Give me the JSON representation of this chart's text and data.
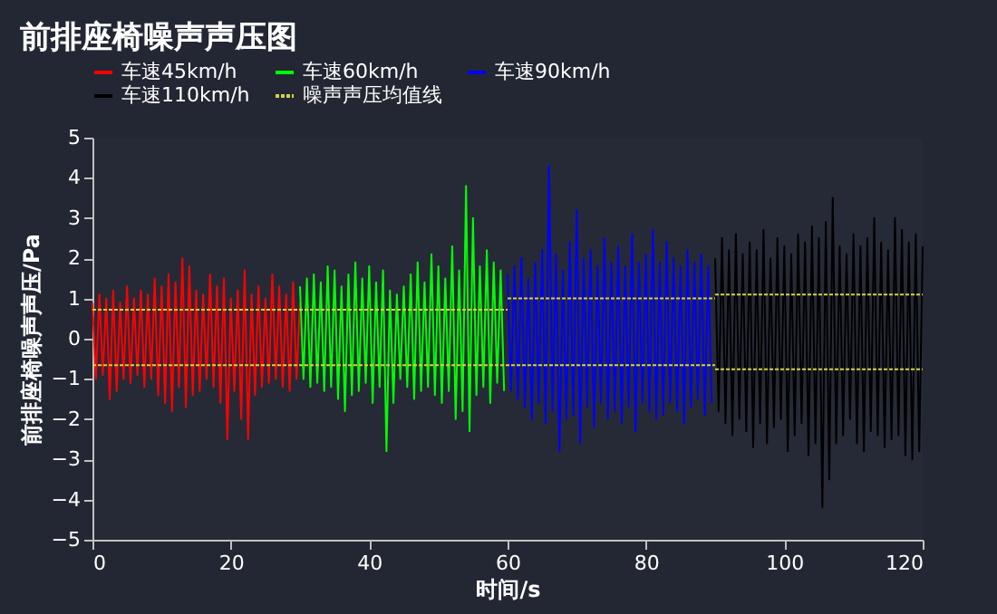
{
  "chart_data": {
    "type": "line",
    "title": "前排座椅噪声声压图",
    "xlabel": "时间/s",
    "ylabel": "前排座椅噪声声压/Pa",
    "xlim": [
      0,
      120
    ],
    "xticks": [
      0,
      20,
      40,
      60,
      80,
      100,
      120
    ],
    "ylim": [
      -5,
      5
    ],
    "yticks": [
      -5,
      -4,
      -3,
      -2,
      -1,
      0,
      1,
      2,
      3,
      4,
      5
    ],
    "grid": false,
    "legend": "top",
    "marker": "none",
    "line_style": "solid",
    "series": [
      {
        "name": "车速45km/h",
        "color": "#ff0000",
        "x": [
          0,
          0.5,
          1,
          1.5,
          2,
          2.5,
          3,
          3.5,
          4,
          4.5,
          5,
          5.5,
          6,
          6.5,
          7,
          7.5,
          8,
          8.5,
          9,
          9.5,
          10,
          10.5,
          11,
          11.5,
          12,
          12.5,
          13,
          13.5,
          14,
          14.5,
          15,
          15.5,
          16,
          16.5,
          17,
          17.5,
          18,
          18.5,
          19,
          19.5,
          20,
          20.5,
          21,
          21.5,
          22,
          22.5,
          23,
          23.5,
          24,
          24.5,
          25,
          25.5,
          26,
          26.5,
          27,
          27.5,
          28,
          28.5,
          29,
          29.5,
          30
        ],
        "values": [
          0.9,
          -1.0,
          1.1,
          -0.9,
          1.0,
          -1.5,
          1.2,
          -1.3,
          0.9,
          -1.0,
          1.3,
          -1.1,
          1.0,
          -0.9,
          1.2,
          -1.2,
          1.1,
          -1.0,
          1.5,
          -1.4,
          1.3,
          -1.6,
          1.6,
          -1.8,
          1.4,
          -1.2,
          2.0,
          -1.7,
          1.8,
          -1.4,
          1.2,
          -1.3,
          1.1,
          -1.0,
          1.6,
          -1.2,
          1.3,
          -1.6,
          1.5,
          -2.5,
          1.0,
          -1.3,
          1.2,
          -2.0,
          1.7,
          -2.5,
          1.1,
          -1.4,
          1.3,
          -1.2,
          1.0,
          -1.1,
          1.6,
          -1.0,
          1.3,
          -1.2,
          1.1,
          -1.3,
          1.4,
          -1.0,
          0.9
        ]
      },
      {
        "name": "车速60km/h",
        "color": "#00ff00",
        "x": [
          30,
          30.5,
          31,
          31.5,
          32,
          32.5,
          33,
          33.5,
          34,
          34.5,
          35,
          35.5,
          36,
          36.5,
          37,
          37.5,
          38,
          38.5,
          39,
          39.5,
          40,
          40.5,
          41,
          41.5,
          42,
          42.5,
          43,
          43.5,
          44,
          44.5,
          45,
          45.5,
          46,
          46.5,
          47,
          47.5,
          48,
          48.5,
          49,
          49.5,
          50,
          50.5,
          51,
          51.5,
          52,
          52.5,
          53,
          53.5,
          54,
          54.5,
          55,
          55.5,
          56,
          56.5,
          57,
          57.5,
          58,
          58.5,
          59,
          59.5
        ],
        "values": [
          1.3,
          -1.0,
          1.5,
          -1.2,
          1.6,
          -1.1,
          1.4,
          -1.3,
          1.8,
          -1.2,
          1.7,
          -1.5,
          1.3,
          -1.8,
          1.6,
          -1.4,
          1.9,
          -1.3,
          1.5,
          -1.1,
          1.8,
          -1.6,
          1.4,
          -1.2,
          1.7,
          -2.8,
          1.2,
          -1.6,
          1.1,
          -1.0,
          1.3,
          -1.2,
          1.6,
          -1.5,
          1.9,
          -1.3,
          1.4,
          -1.2,
          2.1,
          -1.4,
          1.8,
          -1.6,
          1.5,
          -1.3,
          2.3,
          -2.0,
          1.7,
          -1.8,
          3.8,
          -2.3,
          3.0,
          -1.4,
          1.8,
          -1.2,
          2.2,
          -1.6,
          1.9,
          -1.1,
          1.7,
          -1.3
        ]
      },
      {
        "name": "车速90km/h",
        "color": "#0000ff",
        "x": [
          60,
          60.5,
          61,
          61.5,
          62,
          62.5,
          63,
          63.5,
          64,
          64.5,
          65,
          65.5,
          66,
          66.5,
          67,
          67.5,
          68,
          68.5,
          69,
          69.5,
          70,
          70.5,
          71,
          71.5,
          72,
          72.5,
          73,
          73.5,
          74,
          74.5,
          75,
          75.5,
          76,
          76.5,
          77,
          77.5,
          78,
          78.5,
          79,
          79.5,
          80,
          80.5,
          81,
          81.5,
          82,
          82.5,
          83,
          83.5,
          84,
          84.5,
          85,
          85.5,
          86,
          86.5,
          87,
          87.5,
          88,
          88.5,
          89,
          89.5
        ],
        "values": [
          1.6,
          -1.3,
          1.8,
          -1.5,
          2.0,
          -1.7,
          1.5,
          -2.0,
          1.9,
          -1.6,
          2.2,
          -2.1,
          4.3,
          -1.8,
          2.1,
          -2.8,
          1.7,
          -2.0,
          2.4,
          -1.9,
          3.2,
          -2.6,
          2.0,
          -1.7,
          2.2,
          -2.2,
          1.8,
          -1.6,
          2.5,
          -2.0,
          1.9,
          -1.8,
          2.3,
          -2.1,
          1.8,
          -1.7,
          2.6,
          -2.3,
          1.9,
          -1.6,
          2.1,
          -1.8,
          2.7,
          -2.0,
          1.9,
          -1.9,
          2.4,
          -1.6,
          2.0,
          -1.8,
          1.8,
          -2.1,
          2.2,
          -1.7,
          1.9,
          -1.5,
          2.1,
          -1.9,
          1.8,
          -1.6
        ]
      },
      {
        "name": "车速110km/h",
        "color": "#000000",
        "x": [
          90,
          90.5,
          91,
          91.5,
          92,
          92.5,
          93,
          93.5,
          94,
          94.5,
          95,
          95.5,
          96,
          96.5,
          97,
          97.5,
          98,
          98.5,
          99,
          99.5,
          100,
          100.5,
          101,
          101.5,
          102,
          102.5,
          103,
          103.5,
          104,
          104.5,
          105,
          105.5,
          106,
          106.5,
          107,
          107.5,
          108,
          108.5,
          109,
          109.5,
          110,
          110.5,
          111,
          111.5,
          112,
          112.5,
          113,
          113.5,
          114,
          114.5,
          115,
          115.5,
          116,
          116.5,
          117,
          117.5,
          118,
          118.5,
          119,
          119.5,
          120
        ],
        "values": [
          2.0,
          -1.8,
          2.5,
          -2.1,
          2.2,
          -2.4,
          2.6,
          -2.0,
          2.1,
          -2.3,
          2.4,
          -2.7,
          2.2,
          -2.1,
          2.7,
          -2.6,
          2.0,
          -2.2,
          2.5,
          -2.0,
          2.3,
          -2.8,
          2.1,
          -2.4,
          2.6,
          -2.1,
          2.4,
          -2.9,
          2.8,
          -2.6,
          2.5,
          -4.2,
          2.9,
          -3.5,
          3.5,
          -2.6,
          2.3,
          -2.4,
          2.1,
          -2.0,
          2.6,
          -2.6,
          2.3,
          -2.8,
          2.5,
          -2.3,
          3.0,
          -2.4,
          2.4,
          -2.7,
          2.2,
          -2.5,
          3.0,
          -2.4,
          2.7,
          -2.9,
          2.4,
          -3.0,
          2.6,
          -2.8,
          2.3
        ]
      },
      {
        "name": "噪声声压均值线",
        "color": "#d4d43c",
        "line_style": "dotted",
        "x": [
          0,
          60
        ],
        "values": [
          0.72,
          0.72
        ]
      },
      {
        "color": "#d4d43c",
        "line_style": "dotted",
        "x": [
          60,
          90
        ],
        "values": [
          1.0,
          1.0
        ]
      },
      {
        "color": "#d4d43c",
        "line_style": "dotted",
        "x": [
          90,
          120
        ],
        "values": [
          1.1,
          1.1
        ]
      },
      {
        "color": "#d4d43c",
        "line_style": "dotted",
        "x": [
          0,
          90
        ],
        "values": [
          -0.66,
          -0.66
        ]
      },
      {
        "color": "#d4d43c",
        "line_style": "dotted",
        "x": [
          90,
          120
        ],
        "values": [
          -0.76,
          -0.76
        ]
      }
    ]
  }
}
